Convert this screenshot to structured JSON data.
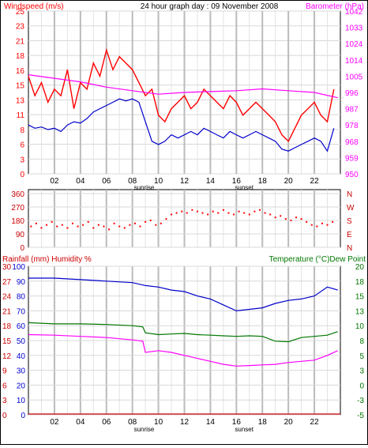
{
  "title": "24 hour graph day : 09 November 2008",
  "chart_data": [
    {
      "type": "line",
      "title": "24 hour graph day : 09 November 2008",
      "ylabel_left": "Windspeed (m/s)",
      "ylabel_right": "Barometer (hPa)",
      "ylim_left": [
        0,
        25
      ],
      "ylim_right": [
        950,
        1042
      ],
      "yticks_left": [
        "25",
        "23",
        "21",
        "18",
        "16",
        "15",
        "13",
        "11",
        "8",
        "6",
        "3",
        "0"
      ],
      "yticks_right": [
        "1042",
        "1033",
        "1024",
        "1014",
        "1005",
        "996",
        "987",
        "978",
        "968",
        "959",
        "950"
      ],
      "xlim": [
        0,
        24
      ],
      "xticks": [
        "02",
        "04",
        "06",
        "08",
        "10",
        "12",
        "14",
        "16",
        "18",
        "20",
        "22"
      ],
      "annotations": [
        "sunrise",
        "sunset"
      ],
      "sunrise_hour": 8.9,
      "sunset_hour": 16.6,
      "colors": {
        "gust": "#ff0000",
        "average": "#0000cc",
        "barometer": "#ff00ff"
      },
      "series": [
        {
          "role": "gust",
          "x": [
            0,
            0.5,
            1,
            1.5,
            2,
            2.5,
            3,
            3.5,
            4,
            4.5,
            5,
            5.5,
            6,
            6.5,
            7,
            7.5,
            8,
            8.5,
            9,
            9.5,
            10,
            10.5,
            11,
            11.5,
            12,
            12.5,
            13,
            13.5,
            14,
            14.5,
            15,
            15.5,
            16,
            16.5,
            17,
            17.5,
            18,
            18.5,
            19,
            19.5,
            20,
            20.5,
            21,
            21.5,
            22,
            22.5,
            23,
            23.5
          ],
          "values": [
            15,
            12,
            14,
            11,
            13,
            12,
            16,
            10,
            14,
            13,
            17,
            15,
            19,
            16,
            18,
            17,
            16,
            14,
            12,
            13,
            9,
            8,
            10,
            11,
            12,
            10,
            11,
            13,
            12,
            11,
            10,
            12,
            11,
            9,
            10,
            11,
            10,
            9,
            8,
            6,
            5,
            7,
            9,
            10,
            11,
            9,
            8,
            13
          ]
        },
        {
          "role": "average",
          "x": [
            0,
            0.5,
            1,
            1.5,
            2,
            2.5,
            3,
            3.5,
            4,
            4.5,
            5,
            5.5,
            6,
            6.5,
            7,
            7.5,
            8,
            8.5,
            9,
            9.5,
            10,
            10.5,
            11,
            11.5,
            12,
            12.5,
            13,
            13.5,
            14,
            14.5,
            15,
            15.5,
            16,
            16.5,
            17,
            17.5,
            18,
            18.5,
            19,
            19.5,
            20,
            20.5,
            21,
            21.5,
            22,
            22.5,
            23,
            23.5
          ],
          "values": [
            7.5,
            7,
            7.2,
            6.8,
            7,
            6.5,
            7.5,
            8,
            7.8,
            8.5,
            9.5,
            10,
            10.5,
            11,
            11.5,
            11.2,
            11.5,
            11,
            8,
            5,
            4.5,
            5,
            6,
            5.5,
            6,
            6.5,
            6,
            7,
            6.5,
            6,
            5.5,
            6.5,
            6,
            5.5,
            6,
            6.5,
            6,
            5.5,
            5,
            3.8,
            3.5,
            4,
            4.5,
            5,
            5.5,
            5,
            3.5,
            7
          ]
        },
        {
          "role": "barometer",
          "x": [
            0,
            2,
            4,
            6,
            8,
            10,
            12,
            14,
            16,
            18,
            20,
            22,
            23.8
          ],
          "values": [
            1006,
            1004,
            1002,
            999,
            997,
            995,
            996,
            996.5,
            997,
            998,
            997,
            996,
            993
          ]
        }
      ]
    },
    {
      "type": "scatter",
      "ylabel_right_ticks": [
        "N",
        "W",
        "S",
        "E",
        "N"
      ],
      "yticks_left": [
        "360",
        "270",
        "180",
        "90",
        "0"
      ],
      "ylim": [
        0,
        360
      ],
      "xlim": [
        0,
        24
      ],
      "color": "#ff0000",
      "x": [
        0.2,
        0.6,
        1,
        1.4,
        1.8,
        2.2,
        2.6,
        3,
        3.4,
        3.8,
        4.2,
        4.6,
        5,
        5.4,
        5.8,
        6.2,
        6.6,
        7,
        7.4,
        7.8,
        8.2,
        8.6,
        9,
        9.4,
        9.8,
        10.2,
        10.6,
        11,
        11.4,
        11.8,
        12.2,
        12.6,
        13,
        13.4,
        13.8,
        14.2,
        14.6,
        15,
        15.4,
        15.8,
        16.2,
        16.6,
        17,
        17.4,
        17.8,
        18.2,
        18.6,
        19,
        19.4,
        19.8,
        20.2,
        20.6,
        21,
        21.4,
        21.8,
        22.2,
        22.6,
        23,
        23.4
      ],
      "y": [
        140,
        160,
        130,
        150,
        170,
        140,
        150,
        130,
        160,
        140,
        150,
        170,
        130,
        150,
        140,
        120,
        160,
        140,
        130,
        150,
        160,
        140,
        170,
        180,
        150,
        160,
        190,
        220,
        230,
        240,
        230,
        250,
        240,
        230,
        220,
        240,
        230,
        250,
        230,
        220,
        240,
        230,
        220,
        240,
        250,
        230,
        220,
        200,
        210,
        190,
        180,
        200,
        190,
        170,
        150,
        140,
        160,
        150,
        170
      ]
    },
    {
      "type": "line",
      "ylabel_left": "Rainfall (mm)  Humidity %",
      "ylabel_right": "Temperature (°C)Dew Point",
      "yticks_left_rain": [
        "30",
        "27",
        "24",
        "21",
        "18",
        "15",
        "12",
        "9",
        "6",
        "3",
        "0"
      ],
      "yticks_left_hum": [
        "100",
        "90",
        "80",
        "70",
        "60",
        "50",
        "40",
        "30",
        "20",
        "10",
        "0"
      ],
      "yticks_right": [
        "20",
        "18",
        "15",
        "13",
        "10",
        "8",
        "5",
        "3",
        "0",
        "-3",
        "-5"
      ],
      "ylim_humidity": [
        0,
        100
      ],
      "ylim_temperature": [
        -5,
        20
      ],
      "xlim": [
        0,
        24
      ],
      "colors": {
        "humidity": "#0000cc",
        "temperature": "#007700",
        "dewpoint": "#ff00ff",
        "rainfall": "#cc0000"
      },
      "series": [
        {
          "role": "humidity",
          "x": [
            0,
            2,
            4,
            6,
            8,
            9,
            10,
            11,
            12,
            13,
            14,
            15,
            16,
            17,
            18,
            19,
            20,
            21,
            22,
            23,
            23.8
          ],
          "values": [
            92,
            92,
            91,
            90,
            89,
            87,
            86,
            84,
            83,
            80,
            78,
            74,
            70,
            71,
            72,
            75,
            77,
            78,
            80,
            86,
            84
          ]
        },
        {
          "role": "temperature",
          "x": [
            0,
            2,
            4,
            6,
            8,
            8.8,
            9,
            10,
            11,
            12,
            13,
            14,
            15,
            16,
            17,
            18,
            19,
            20,
            21,
            22,
            23,
            23.8
          ],
          "values": [
            10.5,
            10.3,
            10.3,
            10.2,
            10,
            9.8,
            8.8,
            8.5,
            8.6,
            8.7,
            8.5,
            8.4,
            8.3,
            8.2,
            8.3,
            8.2,
            7.4,
            7.3,
            8,
            8.2,
            8.4,
            9
          ]
        },
        {
          "role": "dewpoint",
          "x": [
            0,
            2,
            4,
            6,
            8,
            8.8,
            9,
            10,
            11,
            12,
            13,
            14,
            15,
            16,
            17,
            18,
            19,
            20,
            21,
            22,
            23,
            23.8
          ],
          "values": [
            8.5,
            8.4,
            8.2,
            8,
            7.6,
            7.4,
            5.5,
            5.8,
            5.5,
            5,
            4.5,
            4,
            3.5,
            3.2,
            3.3,
            3.4,
            3.5,
            3.8,
            4,
            4.2,
            5,
            5.8
          ]
        },
        {
          "role": "rainfall",
          "x": [
            0,
            24
          ],
          "values": [
            0,
            0
          ]
        }
      ]
    }
  ]
}
